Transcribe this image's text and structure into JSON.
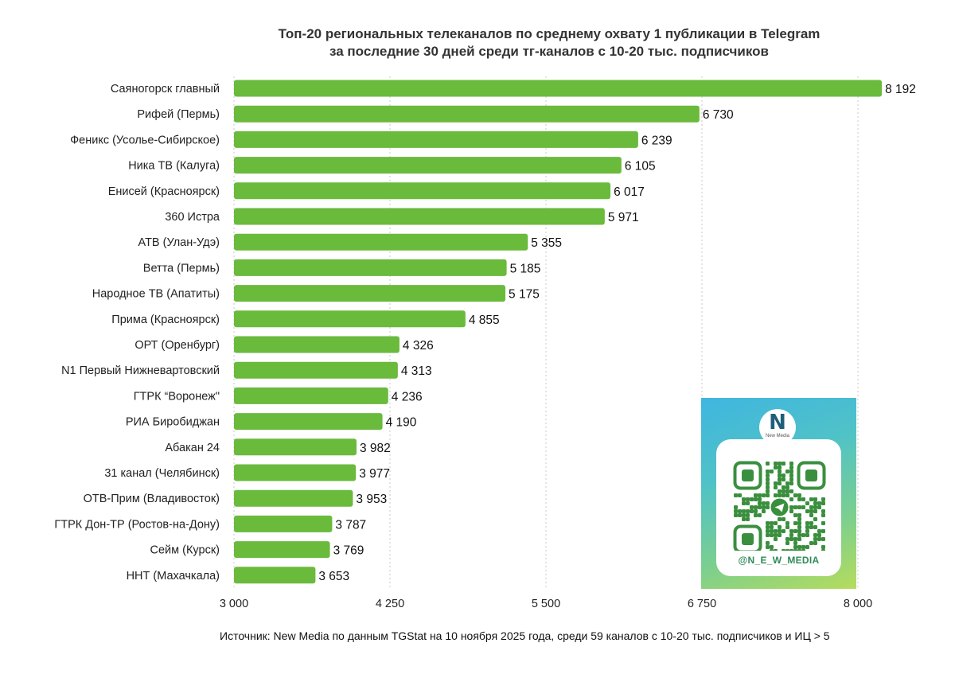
{
  "chart_data": {
    "type": "bar",
    "orientation": "horizontal",
    "title": "Топ-20 региональных телеканалов по среднему охвату 1 публикации в Telegram",
    "subtitle": "за последние 30 дней среди тг-каналов с 10-20 тыс. подписчиков",
    "categories": [
      "Саяногорск главный",
      "Рифей (Пермь)",
      "Феникс (Усолье-Сибирское)",
      "Ника ТВ (Калуга)",
      "Енисей (Красноярск)",
      "360 Истра",
      "АТВ (Улан-Удэ)",
      "Ветта (Пермь)",
      "Народное ТВ (Апатиты)",
      "Прима (Красноярск)",
      "ОРТ (Оренбург)",
      "N1 Первый Нижневартовский",
      "ГТРК “Воронеж\"",
      "РИА Биробиджан",
      "Абакан 24",
      "31 канал (Челябинск)",
      "ОТВ-Прим (Владивосток)",
      "ГТРК Дон-ТР (Ростов-на-Дону)",
      "Сейм (Курск)",
      "ННТ (Махачкала)"
    ],
    "values": [
      8192,
      6730,
      6239,
      6105,
      6017,
      5971,
      5355,
      5185,
      5175,
      4855,
      4326,
      4313,
      4236,
      4190,
      3982,
      3977,
      3953,
      3787,
      3769,
      3653
    ],
    "value_labels": [
      "8 192",
      "6 730",
      "6 239",
      "6 105",
      "6 017",
      "5 971",
      "5 355",
      "5 185",
      "5 175",
      "4 855",
      "4 326",
      "4 313",
      "4 236",
      "4 190",
      "3 982",
      "3 977",
      "3 953",
      "3 787",
      "3 769",
      "3 653"
    ],
    "xlim": [
      3000,
      8000
    ],
    "xticks": [
      3000,
      4250,
      5500,
      6750,
      8000
    ],
    "xtick_labels": [
      "3 000",
      "4 250",
      "5 500",
      "6 750",
      "8 000"
    ],
    "grid": "vertical dashed",
    "bar_color": "#6aba3c",
    "grid_color": "#c9c9c9"
  },
  "source": "Источник: New Media по данным TGStat на 10 ноября 2025 года, среди 59 каналов с 10-20 тыс. подписчиков и ИЦ > 5",
  "qr_card": {
    "logo_letter": "N",
    "logo_text": "New Media",
    "handle": "@N_E_W_MEDIA",
    "icon": "telegram-icon"
  }
}
